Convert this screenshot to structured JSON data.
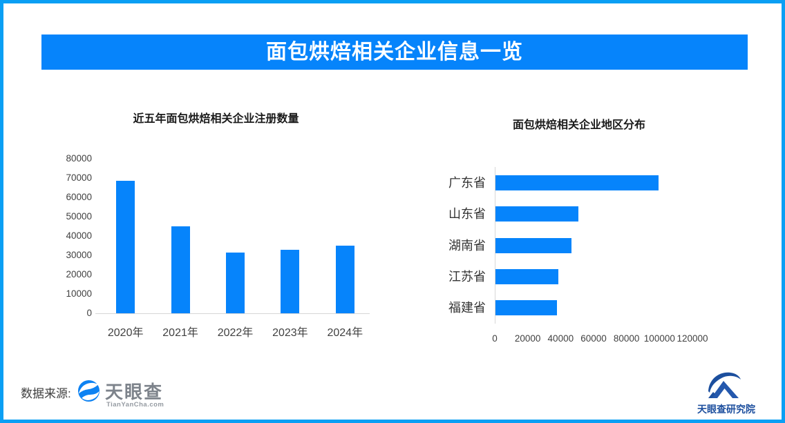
{
  "banner": {
    "title": "面包烘焙相关企业信息一览"
  },
  "colors": {
    "accent_blue": "#0684fb",
    "border_blue": "#0a9ff4",
    "axis_line_gray": "#d6d6d6",
    "tianyancha_gray": "#7d838b",
    "research_navy": "#1d4f9e"
  },
  "chart_data": [
    {
      "type": "bar",
      "orientation": "vertical",
      "title": "近五年面包烘焙相关企业注册数量",
      "categories": [
        "2020年",
        "2021年",
        "2022年",
        "2023年",
        "2024年"
      ],
      "values": [
        68500,
        45000,
        31500,
        33000,
        35000
      ],
      "ylabel": "",
      "xlabel": "",
      "ylim": [
        0,
        80000
      ],
      "yticks": [
        0,
        10000,
        20000,
        30000,
        40000,
        50000,
        60000,
        70000,
        80000
      ],
      "grid": false,
      "legend": "none",
      "bar_color": "#0684fb"
    },
    {
      "type": "bar",
      "orientation": "horizontal",
      "title": "面包烘焙相关企业地区分布",
      "categories": [
        "广东省",
        "山东省",
        "湖南省",
        "江苏省",
        "福建省"
      ],
      "values": [
        99000,
        50500,
        46000,
        38000,
        37500
      ],
      "ylabel": "",
      "xlabel": "",
      "xlim": [
        0,
        120000
      ],
      "xticks": [
        0,
        20000,
        40000,
        60000,
        80000,
        100000,
        120000
      ],
      "grid": false,
      "legend": "none",
      "bar_color": "#0684fb"
    }
  ],
  "footer": {
    "source_label": "数据来源:",
    "tianyancha_name": "天眼查",
    "tianyancha_domain": "TianYanCha.com",
    "research_institute": "天眼查研究院"
  }
}
